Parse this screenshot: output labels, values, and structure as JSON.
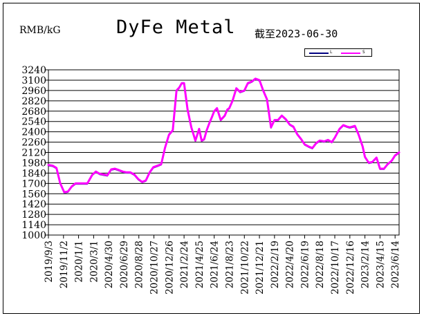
{
  "header": {
    "unit": "RMB/kG",
    "title": "DyFe Metal",
    "as_of": "截至2023-06-30"
  },
  "legend": {
    "items": [
      {
        "label": "L",
        "color": "#000080"
      },
      {
        "label": "S",
        "color": "#ff00ff"
      }
    ]
  },
  "colors": {
    "primary_series": "#ff00ff",
    "secondary_series": "#000080",
    "grid": "#000000"
  },
  "chart_data": {
    "type": "line",
    "title": "DyFe Metal",
    "ylabel": "RMB/kG",
    "xlabel": "",
    "ylim": [
      1000,
      3240
    ],
    "yticks": [
      1000,
      1140,
      1280,
      1420,
      1560,
      1700,
      1840,
      1980,
      2120,
      2260,
      2400,
      2540,
      2680,
      2820,
      2960,
      3100,
      3240
    ],
    "xticks": [
      "2019/9/3",
      "2019/11/2",
      "2020/1/1",
      "2020/3/1",
      "2020/4/30",
      "2020/6/29",
      "2020/8/28",
      "2020/10/27",
      "2020/12/26",
      "2021/2/24",
      "2021/4/25",
      "2021/6/24",
      "2021/8/23",
      "2021/10/22",
      "2021/12/21",
      "2022/2/19",
      "2022/4/20",
      "2022/6/19",
      "2022/8/18",
      "2022/10/17",
      "2022/12/16",
      "2023/2/14",
      "2023/4/15",
      "2023/6/14"
    ],
    "grid": true,
    "legend_position": "top-right",
    "series": [
      {
        "name": "S",
        "color": "#ff00ff",
        "x": [
          "2019/9/3",
          "2019/9/20",
          "2019/10/5",
          "2019/10/20",
          "2019/11/5",
          "2019/11/20",
          "2019/12/5",
          "2019/12/20",
          "2020/1/5",
          "2020/1/20",
          "2020/2/5",
          "2020/2/25",
          "2020/3/10",
          "2020/3/25",
          "2020/4/10",
          "2020/4/25",
          "2020/5/10",
          "2020/5/25",
          "2020/6/10",
          "2020/6/25",
          "2020/7/10",
          "2020/7/25",
          "2020/8/10",
          "2020/8/25",
          "2020/9/10",
          "2020/9/25",
          "2020/10/10",
          "2020/10/25",
          "2020/11/10",
          "2020/11/25",
          "2020/12/10",
          "2020/12/26",
          "2021/1/10",
          "2021/1/25",
          "2021/2/5",
          "2021/2/15",
          "2021/2/24",
          "2021/3/10",
          "2021/3/25",
          "2021/4/10",
          "2021/4/25",
          "2021/5/5",
          "2021/5/15",
          "2021/5/25",
          "2021/6/5",
          "2021/6/15",
          "2021/6/24",
          "2021/7/5",
          "2021/7/20",
          "2021/8/5",
          "2021/8/15",
          "2021/8/23",
          "2021/9/5",
          "2021/9/20",
          "2021/10/5",
          "2021/10/22",
          "2021/11/5",
          "2021/11/20",
          "2021/12/5",
          "2021/12/21",
          "2022/1/5",
          "2022/1/20",
          "2022/2/5",
          "2022/2/19",
          "2022/3/5",
          "2022/3/20",
          "2022/4/5",
          "2022/4/20",
          "2022/5/5",
          "2022/5/20",
          "2022/6/5",
          "2022/6/19",
          "2022/7/5",
          "2022/7/20",
          "2022/8/5",
          "2022/8/18",
          "2022/9/5",
          "2022/9/20",
          "2022/10/5",
          "2022/10/17",
          "2022/11/5",
          "2022/11/20",
          "2022/12/5",
          "2022/12/16",
          "2023/1/5",
          "2023/1/20",
          "2023/2/5",
          "2023/2/14",
          "2023/3/1",
          "2023/3/15",
          "2023/4/1",
          "2023/4/15",
          "2023/5/1",
          "2023/5/15",
          "2023/6/1",
          "2023/6/14",
          "2023/6/30"
        ],
        "values": [
          1950,
          1940,
          1910,
          1700,
          1580,
          1590,
          1660,
          1700,
          1700,
          1700,
          1700,
          1820,
          1860,
          1830,
          1820,
          1810,
          1890,
          1900,
          1880,
          1860,
          1850,
          1850,
          1820,
          1760,
          1720,
          1740,
          1850,
          1920,
          1940,
          1960,
          2180,
          2360,
          2420,
          2960,
          3000,
          3060,
          3060,
          2700,
          2460,
          2280,
          2440,
          2280,
          2300,
          2420,
          2520,
          2600,
          2680,
          2720,
          2560,
          2620,
          2700,
          2720,
          2820,
          2990,
          2940,
          2960,
          3060,
          3080,
          3120,
          3100,
          2960,
          2840,
          2460,
          2560,
          2560,
          2620,
          2570,
          2500,
          2470,
          2370,
          2300,
          2230,
          2200,
          2180,
          2250,
          2280,
          2270,
          2290,
          2260,
          2320,
          2440,
          2490,
          2470,
          2460,
          2480,
          2360,
          2200,
          2060,
          1980,
          1990,
          2050,
          1900,
          1900,
          1960,
          2010,
          2080,
          2120
        ]
      },
      {
        "name": "L",
        "color": "#000080",
        "x": [
          "2019/9/3",
          "2019/9/20",
          "2019/10/5",
          "2019/10/20",
          "2019/11/5",
          "2019/11/20",
          "2019/12/5",
          "2019/12/20",
          "2020/1/5",
          "2020/1/20",
          "2020/2/5",
          "2020/2/25",
          "2020/3/10",
          "2020/3/25",
          "2020/4/10",
          "2020/4/25",
          "2020/5/10",
          "2020/5/25",
          "2020/6/10",
          "2020/6/25",
          "2020/7/10",
          "2020/7/25",
          "2020/8/10",
          "2020/8/25",
          "2020/9/10",
          "2020/9/25",
          "2020/10/10",
          "2020/10/25",
          "2020/11/10",
          "2020/11/25",
          "2020/12/10",
          "2020/12/26",
          "2021/1/10",
          "2021/1/25",
          "2021/2/5",
          "2021/2/15",
          "2021/2/24",
          "2021/3/10",
          "2021/3/25",
          "2021/4/10",
          "2021/4/25",
          "2021/5/5",
          "2021/5/15",
          "2021/5/25",
          "2021/6/5",
          "2021/6/15",
          "2021/6/24",
          "2021/7/5",
          "2021/7/20",
          "2021/8/5",
          "2021/8/15",
          "2021/8/23",
          "2021/9/5",
          "2021/9/20",
          "2021/10/5",
          "2021/10/22",
          "2021/11/5",
          "2021/11/20",
          "2021/12/5",
          "2021/12/21",
          "2022/1/5",
          "2022/1/20",
          "2022/2/5",
          "2022/2/19",
          "2022/3/5",
          "2022/3/20",
          "2022/4/5",
          "2022/4/20",
          "2022/5/5",
          "2022/5/20",
          "2022/6/5",
          "2022/6/19",
          "2022/7/5",
          "2022/7/20",
          "2022/8/5",
          "2022/8/18",
          "2022/9/5",
          "2022/9/20",
          "2022/10/5",
          "2022/10/17",
          "2022/11/5",
          "2022/11/20",
          "2022/12/5",
          "2022/12/16",
          "2023/1/5",
          "2023/1/20",
          "2023/2/5",
          "2023/2/14",
          "2023/3/1",
          "2023/3/15",
          "2023/4/1",
          "2023/4/15",
          "2023/5/1",
          "2023/5/15",
          "2023/6/1",
          "2023/6/14",
          "2023/6/30"
        ],
        "values": [
          1940,
          1930,
          1900,
          1690,
          1570,
          1580,
          1650,
          1690,
          1690,
          1690,
          1690,
          1810,
          1850,
          1820,
          1810,
          1800,
          1880,
          1890,
          1870,
          1850,
          1840,
          1840,
          1810,
          1750,
          1710,
          1730,
          1840,
          1910,
          1930,
          1950,
          2170,
          2350,
          2410,
          2950,
          2990,
          3050,
          3050,
          2690,
          2450,
          2270,
          2430,
          2270,
          2290,
          2410,
          2510,
          2590,
          2670,
          2710,
          2550,
          2610,
          2690,
          2710,
          2810,
          2980,
          2930,
          2950,
          3050,
          3070,
          3110,
          3090,
          2950,
          2830,
          2450,
          2550,
          2550,
          2610,
          2560,
          2490,
          2460,
          2360,
          2290,
          2220,
          2190,
          2170,
          2240,
          2270,
          2260,
          2280,
          2250,
          2310,
          2430,
          2480,
          2460,
          2450,
          2470,
          2350,
          2190,
          2050,
          1970,
          1980,
          2040,
          1890,
          1890,
          1950,
          2000,
          2070,
          2110
        ]
      }
    ]
  }
}
